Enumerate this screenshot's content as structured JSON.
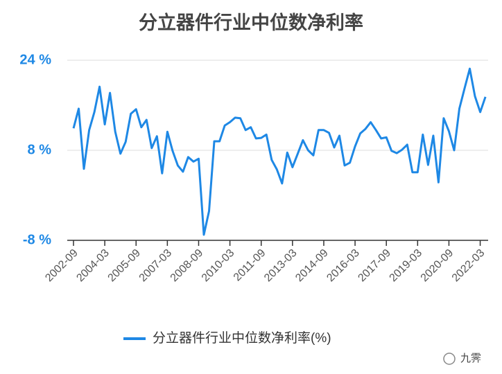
{
  "chart_data": {
    "type": "line",
    "title": "分立器件行业中位数净利率",
    "categories": [
      "2002-09",
      null,
      null,
      null,
      null,
      null,
      "2004-03",
      null,
      null,
      null,
      null,
      null,
      "2005-09",
      null,
      null,
      null,
      null,
      null,
      "2007-03",
      null,
      null,
      null,
      null,
      null,
      "2008-09",
      null,
      null,
      null,
      null,
      null,
      "2010-03",
      null,
      null,
      null,
      null,
      null,
      "2011-09",
      null,
      null,
      null,
      null,
      null,
      "2013-03",
      null,
      null,
      null,
      null,
      null,
      "2014-09",
      null,
      null,
      null,
      null,
      null,
      "2016-03",
      null,
      null,
      null,
      null,
      null,
      "2017-09",
      null,
      null,
      null,
      null,
      null,
      "2019-03",
      null,
      null,
      null,
      null,
      null,
      "2020-09",
      null,
      null,
      null,
      null,
      null,
      "2022-03",
      null
    ],
    "series": [
      {
        "name": "分立器件行业中位数净利率(%)",
        "color": "#1e88e5",
        "values": [
          11.9,
          15.4,
          4.7,
          11.6,
          14.8,
          19.3,
          12.6,
          18.2,
          11.3,
          7.4,
          9.5,
          14.5,
          15.3,
          12.1,
          13.4,
          8.4,
          10.5,
          3.9,
          11.3,
          7.9,
          5.3,
          4.2,
          6.8,
          6.0,
          6.5,
          -7.0,
          -2.8,
          9.6,
          9.6,
          12.4,
          13.0,
          13.8,
          13.7,
          11.6,
          12.1,
          10.1,
          10.2,
          10.8,
          6.3,
          4.6,
          2.1,
          7.6,
          5.0,
          7.4,
          9.8,
          8.0,
          7.1,
          11.6,
          11.6,
          11.1,
          8.5,
          10.6,
          5.3,
          5.8,
          8.7,
          11.0,
          11.8,
          13.0,
          11.6,
          10.1,
          10.3,
          7.9,
          7.5,
          8.1,
          9.0,
          4.1,
          4.1,
          10.8,
          5.4,
          10.6,
          2.3,
          13.7,
          11.4,
          8.0,
          15.4,
          19.0,
          22.5,
          17.6,
          14.8,
          17.5
        ]
      }
    ],
    "ylim": [
      -8,
      24
    ],
    "yticks": [
      {
        "value": -8,
        "label": "-8 %"
      },
      {
        "value": 8,
        "label": "8 %"
      },
      {
        "value": 24,
        "label": "24 %"
      }
    ],
    "grid": true,
    "legend": "bottom",
    "watermark": "九霁"
  }
}
